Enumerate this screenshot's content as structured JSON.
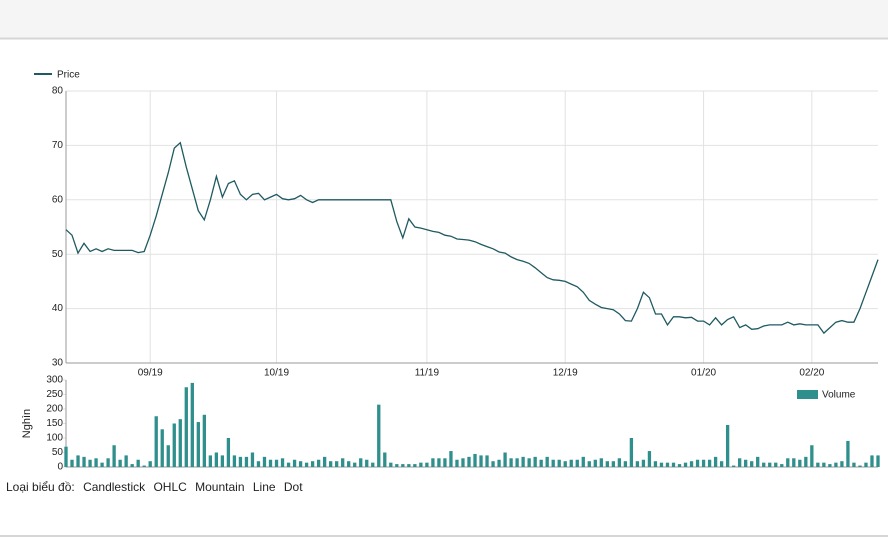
{
  "chart_data": [
    {
      "type": "line",
      "xlim": [
        0,
        135
      ],
      "xticks": [
        {
          "value": 14,
          "label": "09/19"
        },
        {
          "value": 35,
          "label": "10/19"
        },
        {
          "value": 60,
          "label": "11/19"
        },
        {
          "value": 83,
          "label": "12/19"
        },
        {
          "value": 106,
          "label": "01/20"
        },
        {
          "value": 124,
          "label": "02/20"
        }
      ],
      "ylim": [
        30,
        80
      ],
      "yticks": [
        30,
        40,
        50,
        60,
        70,
        80
      ],
      "grid": true,
      "legend": "top-left",
      "series": [
        {
          "name": "Price",
          "color": "#1f5a62",
          "values": [
            54.5,
            53.5,
            50.2,
            52,
            50.5,
            51,
            50.5,
            51,
            50.7,
            50.7,
            50.7,
            50.7,
            50.3,
            50.5,
            53.5,
            57,
            61,
            65,
            69.5,
            70.5,
            66,
            62,
            58,
            56.3,
            60,
            64.3,
            60.5,
            63,
            63.5,
            61,
            60,
            61,
            61.2,
            60,
            60.5,
            61,
            60.2,
            60,
            60.2,
            60.8,
            60,
            59.5,
            60,
            60,
            60,
            60,
            60,
            60,
            60,
            60,
            60,
            60,
            60,
            60,
            60,
            56,
            53,
            56.5,
            55,
            54.8,
            54.5,
            54.2,
            54,
            53.5,
            53.3,
            52.8,
            52.7,
            52.6,
            52.3,
            51.8,
            51.4,
            51,
            50.4,
            50.2,
            49.5,
            49,
            48.7,
            48.3,
            47.5,
            46.6,
            45.7,
            45.3,
            45.2,
            45,
            44.5,
            44,
            43,
            41.5,
            40.8,
            40.2,
            40,
            39.8,
            39,
            37.8,
            37.7,
            40,
            43,
            42,
            39,
            39,
            37,
            38.5,
            38.5,
            38.3,
            38.4,
            37.7,
            37.7,
            37,
            38.3,
            37,
            38,
            38.5,
            36.5,
            37,
            36.2,
            36.3,
            36.8,
            37,
            37,
            37,
            37.5,
            37,
            37.2,
            37,
            37,
            37,
            35.5,
            36.5,
            37.5,
            37.8,
            37.5,
            37.5,
            40,
            43,
            46,
            49
          ]
        }
      ]
    },
    {
      "type": "bar",
      "y_label": "Nghìn",
      "xlim": [
        0,
        135
      ],
      "ylim": [
        0,
        300
      ],
      "yticks": [
        0,
        50,
        100,
        150,
        200,
        250,
        300
      ],
      "grid": false,
      "legend": "top-right",
      "series": [
        {
          "name": "Volume",
          "color": "#2f8f8d",
          "values": [
            70,
            25,
            40,
            35,
            25,
            30,
            15,
            30,
            75,
            25,
            40,
            10,
            25,
            5,
            20,
            175,
            130,
            75,
            150,
            165,
            275,
            290,
            155,
            180,
            40,
            50,
            40,
            100,
            40,
            35,
            35,
            50,
            20,
            35,
            25,
            25,
            30,
            15,
            25,
            20,
            15,
            20,
            25,
            35,
            20,
            20,
            30,
            20,
            15,
            30,
            25,
            15,
            215,
            50,
            15,
            10,
            10,
            10,
            10,
            15,
            15,
            30,
            30,
            30,
            55,
            25,
            30,
            35,
            45,
            40,
            40,
            20,
            25,
            50,
            30,
            30,
            35,
            30,
            35,
            25,
            35,
            25,
            25,
            20,
            25,
            25,
            35,
            20,
            25,
            30,
            20,
            20,
            30,
            20,
            100,
            20,
            25,
            55,
            20,
            15,
            15,
            15,
            10,
            15,
            20,
            25,
            25,
            25,
            35,
            20,
            145,
            5,
            30,
            25,
            20,
            35,
            15,
            15,
            15,
            10,
            30,
            30,
            25,
            35,
            75,
            15,
            15,
            10,
            15,
            20,
            90,
            15,
            5,
            15,
            40,
            40
          ]
        }
      ]
    }
  ],
  "chart_types": {
    "label": "Loại biểu đồ:",
    "options": [
      "Candlestick",
      "OHLC",
      "Mountain",
      "Line",
      "Dot"
    ]
  }
}
